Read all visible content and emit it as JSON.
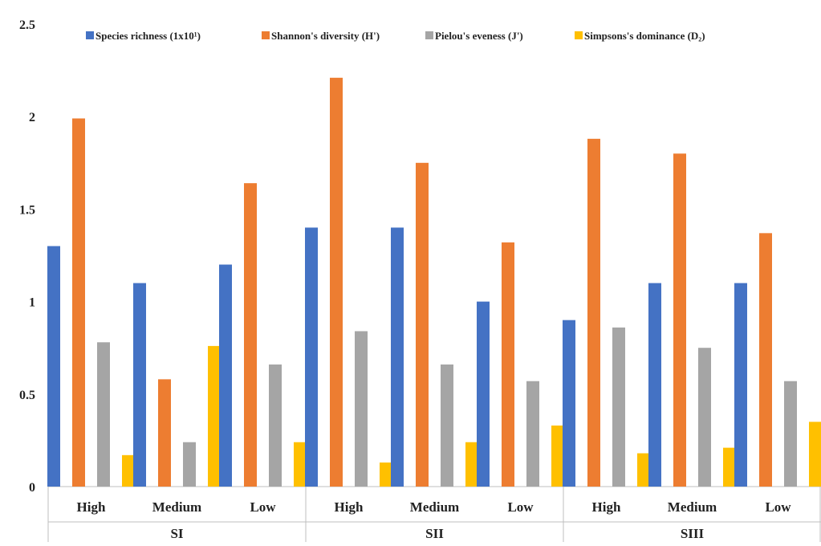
{
  "chart_data": {
    "type": "bar",
    "groups": [
      "SI",
      "SII",
      "SIII"
    ],
    "categories": [
      "High",
      "Medium",
      "Low",
      "High",
      "Medium",
      "Low",
      "High",
      "Medium",
      "Low"
    ],
    "series": [
      {
        "name": "Species richness (1x10¹)",
        "color": "#4472C4",
        "values": [
          1.3,
          1.1,
          1.2,
          1.4,
          1.4,
          1.0,
          0.9,
          1.1,
          1.1
        ]
      },
      {
        "name": "Shannon's diversity (H')",
        "color": "#ED7D31",
        "values": [
          1.99,
          0.58,
          1.64,
          2.21,
          1.75,
          1.32,
          1.88,
          1.8,
          1.37
        ]
      },
      {
        "name": "Pielou's eveness (J')",
        "color": "#A5A5A5",
        "values": [
          0.78,
          0.24,
          0.66,
          0.84,
          0.66,
          0.57,
          0.86,
          0.75,
          0.57
        ]
      },
      {
        "name": "Simpsons's dominance (D₂)",
        "color": "#FFC000",
        "values": [
          0.17,
          0.76,
          0.24,
          0.13,
          0.24,
          0.33,
          0.18,
          0.21,
          0.35
        ]
      }
    ],
    "ylim": [
      0,
      2.5
    ],
    "yticks": [
      "0",
      "0.5",
      "1",
      "1.5",
      "2",
      "2.5"
    ],
    "grid": false,
    "legend_position": "top"
  }
}
